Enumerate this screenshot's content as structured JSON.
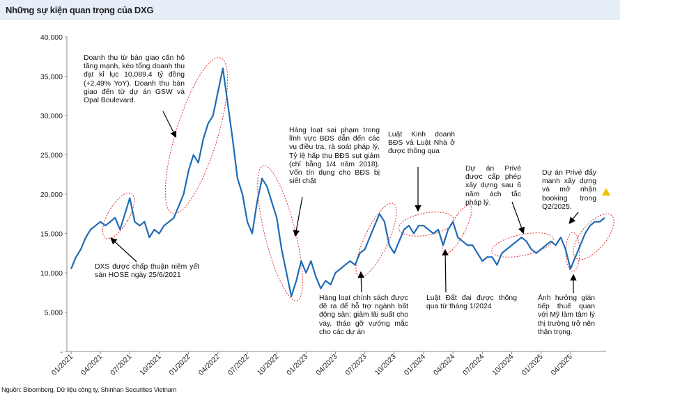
{
  "chart_data": {
    "type": "line",
    "title": "Những sự kiện quan trọng của DXG",
    "source": "Nguồn: Bloomberg, Dữ liệu công ty, Shinhan Securities Vietnam",
    "categories": [
      "01/2021",
      null,
      null,
      null,
      null,
      null,
      "04/2021",
      null,
      null,
      null,
      null,
      null,
      "07/2021",
      null,
      null,
      null,
      null,
      null,
      "10/2021",
      null,
      null,
      null,
      null,
      null,
      "01/2022",
      null,
      null,
      null,
      null,
      null,
      "04/2022",
      null,
      null,
      null,
      null,
      null,
      "07/2022",
      null,
      null,
      null,
      null,
      null,
      "10/2022",
      null,
      null,
      null,
      null,
      null,
      "01/2023",
      null,
      null,
      null,
      null,
      null,
      "04/2023",
      null,
      null,
      null,
      null,
      null,
      "07/2023",
      null,
      null,
      null,
      null,
      null,
      "10/2023",
      null,
      null,
      null,
      null,
      null,
      "01/2024",
      null,
      null,
      null,
      null,
      null,
      "04/2024",
      null,
      null,
      null,
      null,
      null,
      "07/2024",
      null,
      null,
      null,
      null,
      null,
      "10/2024",
      null,
      null,
      null,
      null,
      null,
      "01/2025",
      null,
      null,
      null,
      null,
      null,
      "04/2025",
      null,
      null,
      null,
      null,
      null,
      null,
      null
    ],
    "series": [
      {
        "name": "DXG",
        "color": "#1f6bb5",
        "values": [
          10500,
          12000,
          13000,
          14500,
          15500,
          16000,
          16500,
          16000,
          16500,
          17000,
          15500,
          17500,
          19500,
          16500,
          16000,
          16500,
          14500,
          15500,
          15000,
          16000,
          16500,
          17000,
          18500,
          20000,
          23000,
          25000,
          24000,
          27000,
          29000,
          30000,
          33000,
          36000,
          31500,
          27000,
          22000,
          20000,
          16500,
          15000,
          19000,
          22000,
          21000,
          19000,
          17000,
          13000,
          10000,
          7000,
          9000,
          11500,
          10000,
          11500,
          9500,
          8000,
          9000,
          8500,
          10000,
          10500,
          11000,
          11500,
          11000,
          12500,
          13000,
          14500,
          16000,
          17500,
          16500,
          13500,
          12500,
          14000,
          15500,
          16000,
          15000,
          16000,
          16000,
          15500,
          15000,
          15500,
          13500,
          15500,
          16500,
          14500,
          14000,
          13500,
          13500,
          12500,
          11500,
          12000,
          12000,
          11000,
          12500,
          13000,
          13500,
          14000,
          14500,
          14000,
          13000,
          12500,
          13000,
          13500,
          14000,
          13500,
          14500,
          13000,
          10500,
          12000,
          13500,
          15000,
          16000,
          16500,
          16500,
          17000
        ]
      }
    ],
    "ylim": [
      0,
      40000
    ],
    "yticks": [
      {
        "value": 0,
        "label": "-"
      },
      {
        "value": 5000,
        "label": "5,000"
      },
      {
        "value": 10000,
        "label": "10,000"
      },
      {
        "value": 15000,
        "label": "15,000"
      },
      {
        "value": 20000,
        "label": "20,000"
      },
      {
        "value": 25000,
        "label": "25,000"
      },
      {
        "value": 30000,
        "label": "30,000"
      },
      {
        "value": 35000,
        "label": "35,000"
      },
      {
        "value": 40000,
        "label": "40,000"
      }
    ],
    "annotations": [
      "Doanh thu từ bàn giao căn hộ tăng mạnh, kéo tổng doanh thu đạt kỉ lục 10,089.4 tỷ đồng (+2.49% YoY). Doanh thu bàn giao đến từ dự án GSW và Opal Boulevard.",
      "DXS được chấp thuận niêm yết sàn HOSE ngày 25/6/2021",
      "Hàng loạt sai phạm trong lĩnh vực BĐS dẫn đến các vụ điều tra, rà soát pháp lý. Tỷ lệ hấp thụ BĐS sụt giảm (chỉ bằng 1/4 năm 2018). Vốn tín dụng cho BĐS bị siết chặt",
      "Hàng loạt chính sách được đề ra để hỗ trợ ngành bất động sản: giảm lãi suất cho vay, tháo gỡ vướng mắc cho các dự án",
      "Luật Kinh doanh BĐS và Luật Nhà ở được thông qua",
      "Luật Đất đai được thông qua từ tháng 1/2024",
      "Dự án Privé được cấp phép xây dựng sau 6 năm ách tắc pháp lý.",
      "Dự án Privé đẩy mạnh xây dựng và mở nhận booking trong Q2/2025.",
      "Ảnh hưởng gián tiếp thuế quan với Mỹ làm tâm lý thị trường trở nên thận trọng."
    ]
  }
}
